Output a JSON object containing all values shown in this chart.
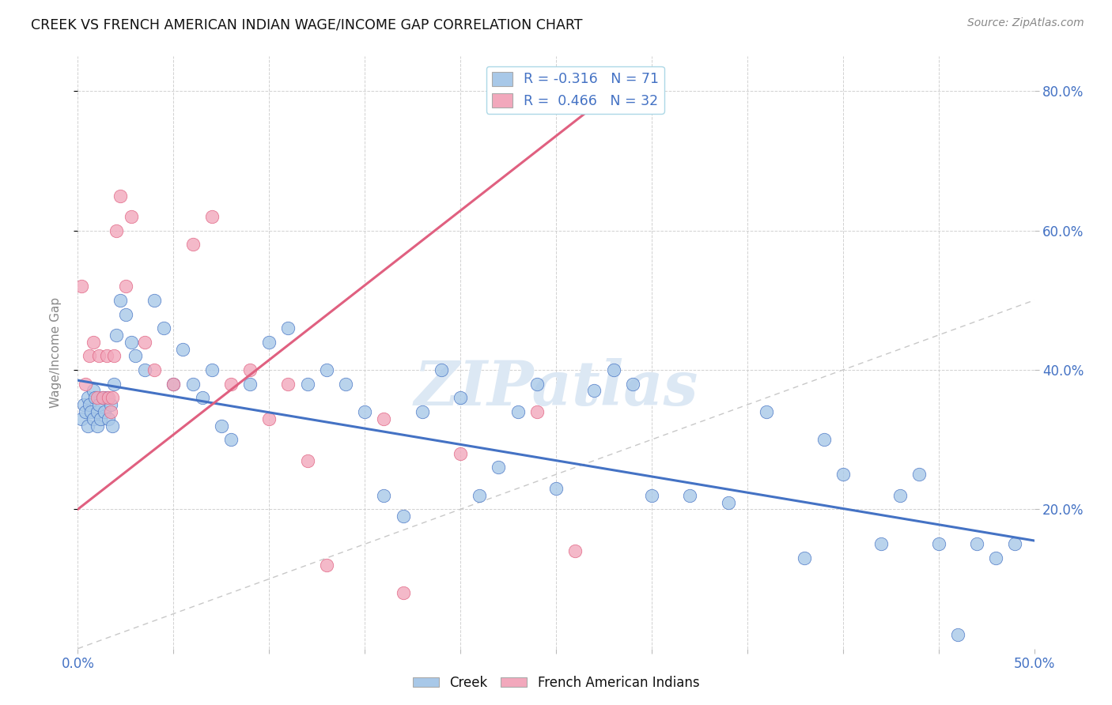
{
  "title": "CREEK VS FRENCH AMERICAN INDIAN WAGE/INCOME GAP CORRELATION CHART",
  "source": "Source: ZipAtlas.com",
  "ylabel": "Wage/Income Gap",
  "xmin": 0.0,
  "xmax": 0.5,
  "ymin": 0.0,
  "ymax": 0.85,
  "creek_R": -0.316,
  "creek_N": 71,
  "fai_R": 0.466,
  "fai_N": 32,
  "creek_color": "#a8c8e8",
  "fai_color": "#f2a8bc",
  "creek_line_color": "#4472c4",
  "fai_line_color": "#e06080",
  "watermark": "ZIPatlas",
  "watermark_color": "#dce8f4",
  "creek_x": [
    0.002,
    0.003,
    0.004,
    0.005,
    0.005,
    0.006,
    0.007,
    0.008,
    0.008,
    0.009,
    0.01,
    0.01,
    0.011,
    0.012,
    0.013,
    0.014,
    0.015,
    0.016,
    0.017,
    0.018,
    0.019,
    0.02,
    0.022,
    0.025,
    0.028,
    0.03,
    0.035,
    0.04,
    0.045,
    0.05,
    0.055,
    0.06,
    0.065,
    0.07,
    0.075,
    0.08,
    0.09,
    0.1,
    0.11,
    0.12,
    0.13,
    0.14,
    0.15,
    0.16,
    0.17,
    0.18,
    0.19,
    0.2,
    0.21,
    0.22,
    0.23,
    0.24,
    0.25,
    0.27,
    0.28,
    0.29,
    0.3,
    0.32,
    0.34,
    0.36,
    0.38,
    0.39,
    0.4,
    0.42,
    0.43,
    0.44,
    0.45,
    0.46,
    0.47,
    0.48,
    0.49
  ],
  "creek_y": [
    0.33,
    0.35,
    0.34,
    0.36,
    0.32,
    0.35,
    0.34,
    0.37,
    0.33,
    0.36,
    0.34,
    0.32,
    0.35,
    0.33,
    0.36,
    0.34,
    0.36,
    0.33,
    0.35,
    0.32,
    0.38,
    0.45,
    0.5,
    0.48,
    0.44,
    0.42,
    0.4,
    0.5,
    0.46,
    0.38,
    0.43,
    0.38,
    0.36,
    0.4,
    0.32,
    0.3,
    0.38,
    0.44,
    0.46,
    0.38,
    0.4,
    0.38,
    0.34,
    0.22,
    0.19,
    0.34,
    0.4,
    0.36,
    0.22,
    0.26,
    0.34,
    0.38,
    0.23,
    0.37,
    0.4,
    0.38,
    0.22,
    0.22,
    0.21,
    0.34,
    0.13,
    0.3,
    0.25,
    0.15,
    0.22,
    0.25,
    0.15,
    0.02,
    0.15,
    0.13,
    0.15
  ],
  "fai_x": [
    0.002,
    0.004,
    0.006,
    0.008,
    0.01,
    0.011,
    0.013,
    0.015,
    0.016,
    0.017,
    0.018,
    0.019,
    0.02,
    0.022,
    0.025,
    0.028,
    0.035,
    0.04,
    0.05,
    0.06,
    0.07,
    0.08,
    0.09,
    0.1,
    0.11,
    0.12,
    0.13,
    0.16,
    0.17,
    0.2,
    0.24,
    0.26
  ],
  "fai_y": [
    0.52,
    0.38,
    0.42,
    0.44,
    0.36,
    0.42,
    0.36,
    0.42,
    0.36,
    0.34,
    0.36,
    0.42,
    0.6,
    0.65,
    0.52,
    0.62,
    0.44,
    0.4,
    0.38,
    0.58,
    0.62,
    0.38,
    0.4,
    0.33,
    0.38,
    0.27,
    0.12,
    0.33,
    0.08,
    0.28,
    0.34,
    0.14
  ],
  "creek_line_x0": 0.0,
  "creek_line_y0": 0.385,
  "creek_line_x1": 0.5,
  "creek_line_y1": 0.155,
  "fai_line_x0": 0.0,
  "fai_line_y0": 0.2,
  "fai_line_x1": 0.28,
  "fai_line_y1": 0.8
}
